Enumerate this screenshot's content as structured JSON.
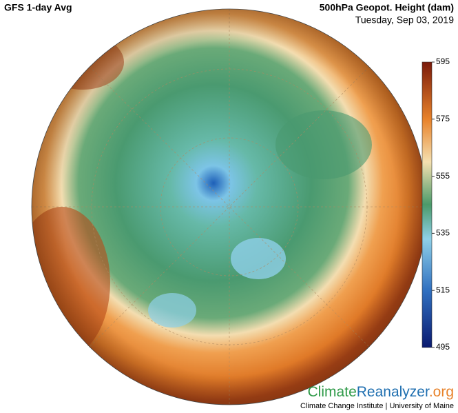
{
  "header": {
    "title": "GFS 1-day Avg",
    "variable": "500hPa Geopot. Height (dam)",
    "date": "Tuesday, Sep 03, 2019"
  },
  "colorbar": {
    "range": [
      495,
      595
    ],
    "ticks": [
      595,
      575,
      555,
      535,
      515,
      495
    ]
  },
  "footer": {
    "logo": [
      "Climate",
      "Reanalyzer",
      ".org"
    ],
    "credit": "Climate Change Institute | University of Maine"
  }
}
